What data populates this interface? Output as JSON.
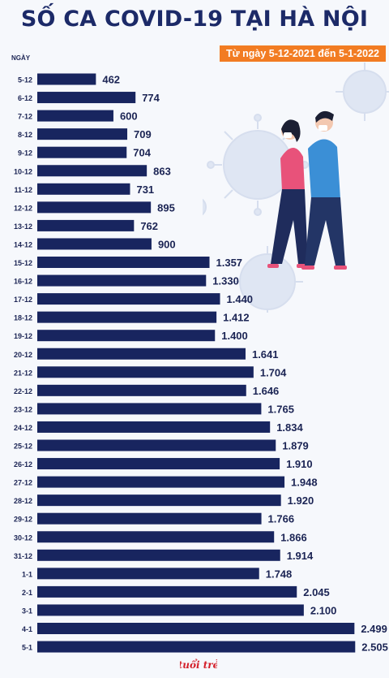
{
  "header": {
    "title": "SỐ CA COVID-19 TẠI HÀ NỘI",
    "subtitle": "Từ ngày 5-12-2021 đến 5-1-2022",
    "axis_label": "NGÀY"
  },
  "logo_text": "tuổi trẻ",
  "colors": {
    "bar": "#18255f",
    "accent": "#f27c22",
    "title": "#1c2a68"
  },
  "chart_data": {
    "type": "bar",
    "orientation": "horizontal",
    "categories": [
      "5-12",
      "6-12",
      "7-12",
      "8-12",
      "9-12",
      "10-12",
      "11-12",
      "12-12",
      "13-12",
      "14-12",
      "15-12",
      "16-12",
      "17-12",
      "18-12",
      "19-12",
      "20-12",
      "21-12",
      "22-12",
      "23-12",
      "24-12",
      "25-12",
      "26-12",
      "27-12",
      "28-12",
      "29-12",
      "30-12",
      "31-12",
      "1-1",
      "2-1",
      "3-1",
      "4-1",
      "5-1"
    ],
    "values": [
      462,
      774,
      600,
      709,
      704,
      863,
      731,
      895,
      762,
      900,
      1357,
      1330,
      1440,
      1412,
      1400,
      1641,
      1704,
      1646,
      1765,
      1834,
      1879,
      1910,
      1948,
      1920,
      1766,
      1866,
      1914,
      1748,
      2045,
      2100,
      2499,
      2505
    ],
    "value_labels": [
      "462",
      "774",
      "600",
      "709",
      "704",
      "863",
      "731",
      "895",
      "762",
      "900",
      "1.357",
      "1.330",
      "1.440",
      "1.412",
      "1.400",
      "1.641",
      "1.704",
      "1.646",
      "1.765",
      "1.834",
      "1.879",
      "1.910",
      "1.948",
      "1.920",
      "1.766",
      "1.866",
      "1.914",
      "1.748",
      "2.045",
      "2.100",
      "2.499",
      "2.505"
    ],
    "title": "SỐ CA COVID-19 TẠI HÀ NỘI",
    "ylabel": "NGÀY",
    "grid": false,
    "legend": "none"
  }
}
